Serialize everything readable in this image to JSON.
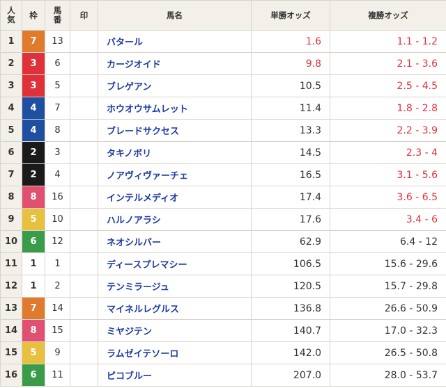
{
  "headers": {
    "pop": "人\n気",
    "waku": "枠",
    "num": "馬\n番",
    "mark": "印",
    "name": "馬名",
    "win": "単勝オッズ",
    "place": "複勝オッズ"
  },
  "frame_colors": {
    "1": "#ffffff",
    "2": "#1a1a1a",
    "3": "#e0313a",
    "4": "#1e4fa0",
    "5": "#e8c040",
    "6": "#3a9c48",
    "7": "#e07a2c",
    "8": "#e05070"
  },
  "odds_highlight_color": "#e0313a",
  "rows": [
    {
      "pop": "1",
      "waku": "7",
      "num": "13",
      "mark": "",
      "name": "バタール",
      "win": "1.6",
      "win_hot": true,
      "place": "1.1 - 1.2",
      "place_hot": true
    },
    {
      "pop": "2",
      "waku": "3",
      "num": "6",
      "mark": "",
      "name": "カージオイド",
      "win": "9.8",
      "win_hot": true,
      "place": "2.1 - 3.6",
      "place_hot": true
    },
    {
      "pop": "3",
      "waku": "3",
      "num": "5",
      "mark": "",
      "name": "ブレゲアン",
      "win": "10.5",
      "win_hot": false,
      "place": "2.5 - 4.5",
      "place_hot": true
    },
    {
      "pop": "4",
      "waku": "4",
      "num": "7",
      "mark": "",
      "name": "ホウオウサムレット",
      "win": "11.4",
      "win_hot": false,
      "place": "1.8 - 2.8",
      "place_hot": true
    },
    {
      "pop": "5",
      "waku": "4",
      "num": "8",
      "mark": "",
      "name": "ブレードサクセス",
      "win": "13.3",
      "win_hot": false,
      "place": "2.2 - 3.9",
      "place_hot": true
    },
    {
      "pop": "6",
      "waku": "2",
      "num": "3",
      "mark": "",
      "name": "タキノボリ",
      "win": "14.5",
      "win_hot": false,
      "place": "2.3 - 4",
      "place_hot": true
    },
    {
      "pop": "7",
      "waku": "2",
      "num": "4",
      "mark": "",
      "name": "ノアヴィヴァーチェ",
      "win": "16.5",
      "win_hot": false,
      "place": "3.1 - 5.6",
      "place_hot": true
    },
    {
      "pop": "8",
      "waku": "8",
      "num": "16",
      "mark": "",
      "name": "インテルメディオ",
      "win": "17.4",
      "win_hot": false,
      "place": "3.6 - 6.5",
      "place_hot": true
    },
    {
      "pop": "9",
      "waku": "5",
      "num": "10",
      "mark": "",
      "name": "ハルノアラシ",
      "win": "17.6",
      "win_hot": false,
      "place": "3.4 - 6",
      "place_hot": true
    },
    {
      "pop": "10",
      "waku": "6",
      "num": "12",
      "mark": "",
      "name": "ネオシルバー",
      "win": "62.9",
      "win_hot": false,
      "place": "6.4 - 12",
      "place_hot": false
    },
    {
      "pop": "11",
      "waku": "1",
      "num": "1",
      "mark": "",
      "name": "ディースプレマシー",
      "win": "106.5",
      "win_hot": false,
      "place": "15.6 - 29.6",
      "place_hot": false
    },
    {
      "pop": "12",
      "waku": "1",
      "num": "2",
      "mark": "",
      "name": "テンミラージュ",
      "win": "120.5",
      "win_hot": false,
      "place": "15.7 - 29.8",
      "place_hot": false
    },
    {
      "pop": "13",
      "waku": "7",
      "num": "14",
      "mark": "",
      "name": "マイネルレグルス",
      "win": "136.8",
      "win_hot": false,
      "place": "26.6 - 50.9",
      "place_hot": false
    },
    {
      "pop": "14",
      "waku": "8",
      "num": "15",
      "mark": "",
      "name": "ミヤジテン",
      "win": "140.7",
      "win_hot": false,
      "place": "17.0 - 32.3",
      "place_hot": false
    },
    {
      "pop": "15",
      "waku": "5",
      "num": "9",
      "mark": "",
      "name": "ラムゼイテソーロ",
      "win": "142.0",
      "win_hot": false,
      "place": "26.5 - 50.8",
      "place_hot": false
    },
    {
      "pop": "16",
      "waku": "6",
      "num": "11",
      "mark": "",
      "name": "ピコブルー",
      "win": "207.0",
      "win_hot": false,
      "place": "28.0 - 53.7",
      "place_hot": false
    }
  ]
}
